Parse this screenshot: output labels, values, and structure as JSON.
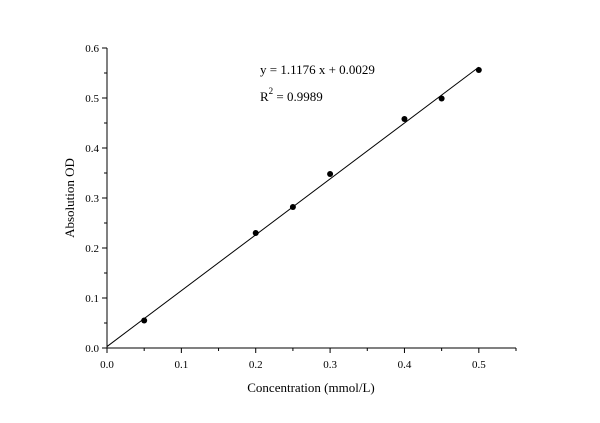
{
  "chart_data": {
    "type": "scatter",
    "title": "",
    "xlabel": "Concentration (mmol/L)",
    "ylabel": "Absolution OD",
    "xlim": [
      0.0,
      0.55
    ],
    "ylim": [
      0.0,
      0.6
    ],
    "x_ticks": [
      0.0,
      0.1,
      0.2,
      0.3,
      0.4,
      0.5
    ],
    "x_tick_labels": [
      "0.0",
      "0.1",
      "0.2",
      "0.3",
      "0.4",
      "0.5"
    ],
    "y_ticks": [
      0.0,
      0.1,
      0.2,
      0.3,
      0.4,
      0.5,
      0.6
    ],
    "y_tick_labels": [
      "0.0",
      "0.1",
      "0.2",
      "0.3",
      "0.4",
      "0.5",
      "0.6"
    ],
    "grid": false,
    "legend": "none",
    "series": [
      {
        "x": [
          0.05,
          0.2,
          0.25,
          0.3,
          0.4,
          0.45,
          0.5
        ],
        "y": [
          0.055,
          0.23,
          0.282,
          0.348,
          0.458,
          0.499,
          0.556
        ],
        "color": "#000000"
      }
    ],
    "fit_line": {
      "slope": 1.1176,
      "intercept": 0.0029,
      "x_range": [
        0.0,
        0.5
      ],
      "color": "#000000"
    },
    "annotation": {
      "equation": "y = 1.1176 x + 0.0029",
      "r2_prefix": "R",
      "r2_superscript": "2",
      "r2_value": " = 0.9989"
    }
  }
}
